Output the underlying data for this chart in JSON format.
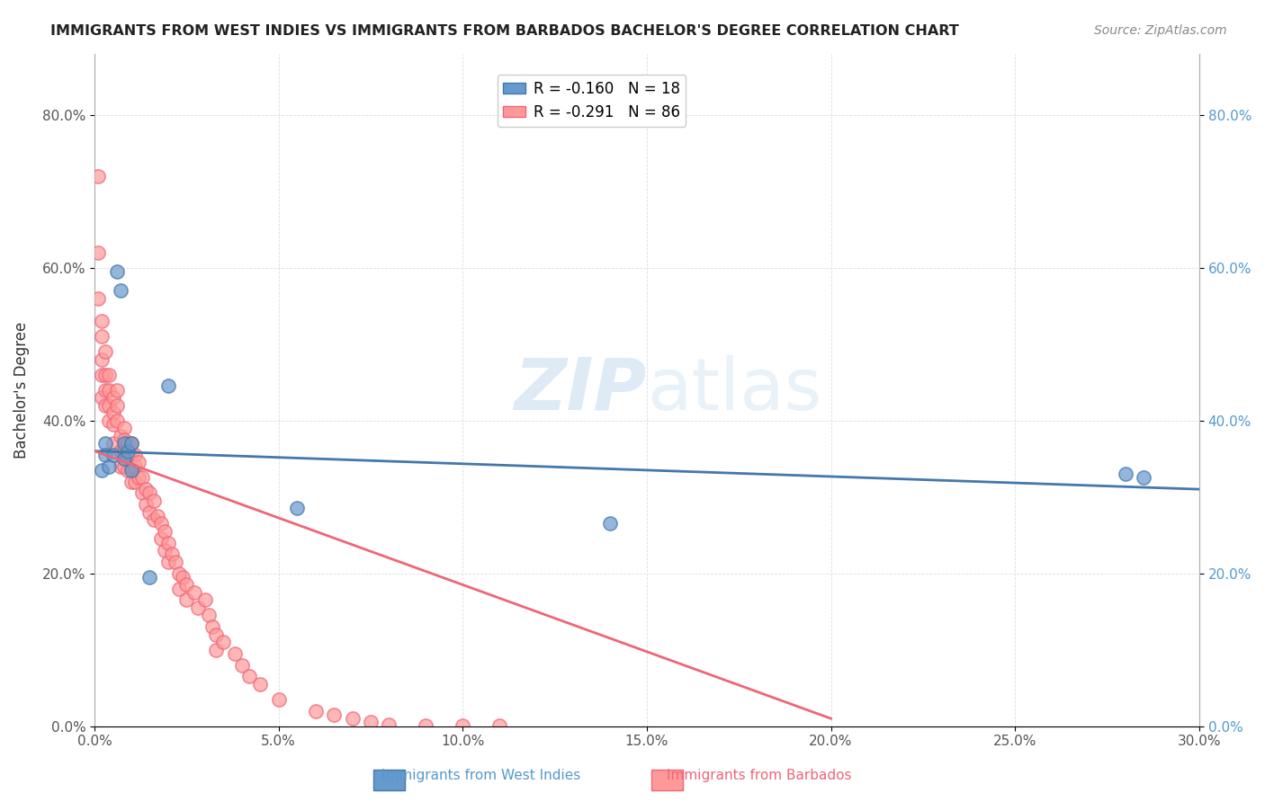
{
  "title": "IMMIGRANTS FROM WEST INDIES VS IMMIGRANTS FROM BARBADOS BACHELOR'S DEGREE CORRELATION CHART",
  "source": "Source: ZipAtlas.com",
  "xlabel_label": "Immigrants from West Indies",
  "xlabel_label2": "Immigrants from Barbados",
  "ylabel": "Bachelor's Degree",
  "xlim": [
    0,
    0.3
  ],
  "ylim": [
    0,
    0.88
  ],
  "xticks": [
    0.0,
    0.05,
    0.1,
    0.15,
    0.2,
    0.25,
    0.3
  ],
  "yticks_left": [
    0.0,
    0.2,
    0.4,
    0.6,
    0.8
  ],
  "yticks_right": [
    0.0,
    0.2,
    0.4,
    0.6,
    0.8
  ],
  "blue_color": "#6699CC",
  "pink_color": "#FF9999",
  "blue_line_color": "#4477AA",
  "pink_line_color": "#EE6677",
  "watermark": "ZIPatlas",
  "legend_blue_r": "R = -0.160",
  "legend_blue_n": "N = 18",
  "legend_pink_r": "R = -0.291",
  "legend_pink_n": "N = 86",
  "blue_dots_x": [
    0.002,
    0.003,
    0.003,
    0.004,
    0.005,
    0.006,
    0.007,
    0.008,
    0.008,
    0.009,
    0.01,
    0.01,
    0.015,
    0.02,
    0.055,
    0.28,
    0.285,
    0.14
  ],
  "blue_dots_y": [
    0.335,
    0.37,
    0.355,
    0.34,
    0.355,
    0.595,
    0.57,
    0.37,
    0.35,
    0.36,
    0.37,
    0.335,
    0.195,
    0.445,
    0.285,
    0.33,
    0.325,
    0.265
  ],
  "pink_dots_x": [
    0.001,
    0.001,
    0.001,
    0.002,
    0.002,
    0.002,
    0.002,
    0.002,
    0.003,
    0.003,
    0.003,
    0.003,
    0.004,
    0.004,
    0.004,
    0.004,
    0.005,
    0.005,
    0.005,
    0.005,
    0.006,
    0.006,
    0.006,
    0.007,
    0.007,
    0.007,
    0.007,
    0.008,
    0.008,
    0.008,
    0.008,
    0.009,
    0.009,
    0.009,
    0.01,
    0.01,
    0.01,
    0.01,
    0.011,
    0.011,
    0.011,
    0.012,
    0.012,
    0.013,
    0.013,
    0.014,
    0.014,
    0.015,
    0.015,
    0.016,
    0.016,
    0.017,
    0.018,
    0.018,
    0.019,
    0.019,
    0.02,
    0.02,
    0.021,
    0.022,
    0.023,
    0.023,
    0.024,
    0.025,
    0.025,
    0.027,
    0.028,
    0.03,
    0.031,
    0.032,
    0.033,
    0.033,
    0.035,
    0.038,
    0.04,
    0.042,
    0.045,
    0.05,
    0.06,
    0.065,
    0.07,
    0.075,
    0.08,
    0.09,
    0.1,
    0.11
  ],
  "pink_dots_y": [
    0.72,
    0.62,
    0.56,
    0.53,
    0.51,
    0.48,
    0.46,
    0.43,
    0.49,
    0.46,
    0.44,
    0.42,
    0.46,
    0.44,
    0.42,
    0.4,
    0.43,
    0.41,
    0.395,
    0.37,
    0.44,
    0.42,
    0.4,
    0.38,
    0.36,
    0.34,
    0.36,
    0.39,
    0.375,
    0.36,
    0.34,
    0.37,
    0.355,
    0.335,
    0.37,
    0.355,
    0.34,
    0.32,
    0.355,
    0.34,
    0.32,
    0.345,
    0.325,
    0.325,
    0.305,
    0.31,
    0.29,
    0.305,
    0.28,
    0.295,
    0.27,
    0.275,
    0.265,
    0.245,
    0.255,
    0.23,
    0.24,
    0.215,
    0.225,
    0.215,
    0.2,
    0.18,
    0.195,
    0.185,
    0.165,
    0.175,
    0.155,
    0.165,
    0.145,
    0.13,
    0.12,
    0.1,
    0.11,
    0.095,
    0.08,
    0.065,
    0.055,
    0.035,
    0.02,
    0.015,
    0.01,
    0.005,
    0.002,
    0.001,
    0.001,
    0.001
  ],
  "blue_trendline_x": [
    0.0,
    0.3
  ],
  "blue_trendline_y": [
    0.36,
    0.31
  ],
  "pink_trendline_x": [
    0.0,
    0.2
  ],
  "pink_trendline_y": [
    0.36,
    0.01
  ],
  "background_color": "#FFFFFF",
  "grid_color": "#DDDDDD"
}
